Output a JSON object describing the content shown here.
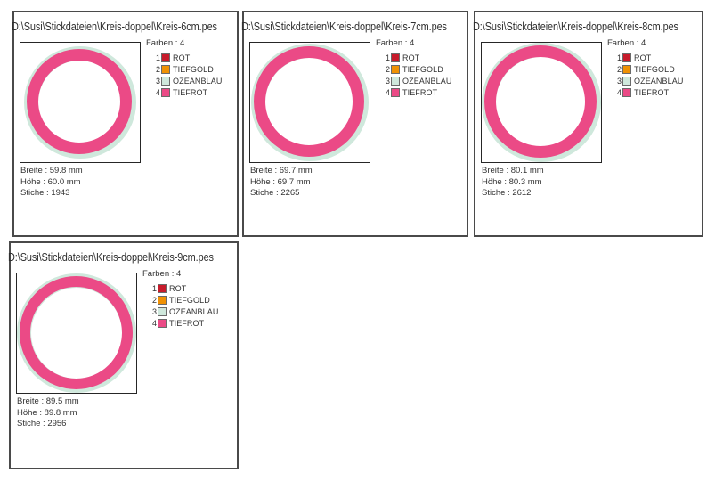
{
  "colors": {
    "rot": "#c71b2b",
    "tiefgold": "#ef9104",
    "ozeanblau": "#cfe8dc",
    "tiefrot": "#eb4a86",
    "panel_border": "#4a4a4a",
    "text": "#333333"
  },
  "legend": {
    "title": "Farben : 4",
    "entries": [
      {
        "num": "1",
        "name": "ROT",
        "color": "#c71b2b"
      },
      {
        "num": "2",
        "name": "TIEFGOLD",
        "color": "#ef9104"
      },
      {
        "num": "3",
        "name": "OZEANBLAU",
        "color": "#cfe8dc"
      },
      {
        "num": "4",
        "name": "TIEFROT",
        "color": "#eb4a86"
      }
    ]
  },
  "panels": [
    {
      "title": "D:\\Susi\\Stickdateien\\Kreis-doppel\\Kreis-6cm.pes",
      "stats": {
        "breite": "Breite : 59.8 mm",
        "hoehe": "Höhe : 60.0 mm",
        "stiche": "Stiche : 1943"
      },
      "preview": {
        "mint_d": 126,
        "pink_d": 118,
        "ring_w": 13
      }
    },
    {
      "title": "D:\\Susi\\Stickdateien\\Kreis-doppel\\Kreis-7cm.pes",
      "stats": {
        "breite": "Breite : 69.7 mm",
        "hoehe": "Höhe : 69.7 mm",
        "stiche": "Stiche : 2265"
      },
      "preview": {
        "mint_d": 132,
        "pink_d": 124,
        "ring_w": 13
      }
    },
    {
      "title": "D:\\Susi\\Stickdateien\\Kreis-doppel\\Kreis-8cm.pes",
      "stats": {
        "breite": "Breite : 80.1 mm",
        "hoehe": "Höhe : 80.3 mm",
        "stiche": "Stiche : 2612"
      },
      "preview": {
        "mint_d": 134,
        "pink_d": 126,
        "ring_w": 13
      }
    },
    {
      "title": "D:\\Susi\\Stickdateien\\Kreis-doppel\\Kreis-9cm.pes",
      "stats": {
        "breite": "Breite : 89.5 mm",
        "hoehe": "Höhe : 89.8 mm",
        "stiche": "Stiche : 2956"
      },
      "preview": {
        "mint_d": 134,
        "pink_d": 127,
        "ring_w": 12
      }
    }
  ]
}
